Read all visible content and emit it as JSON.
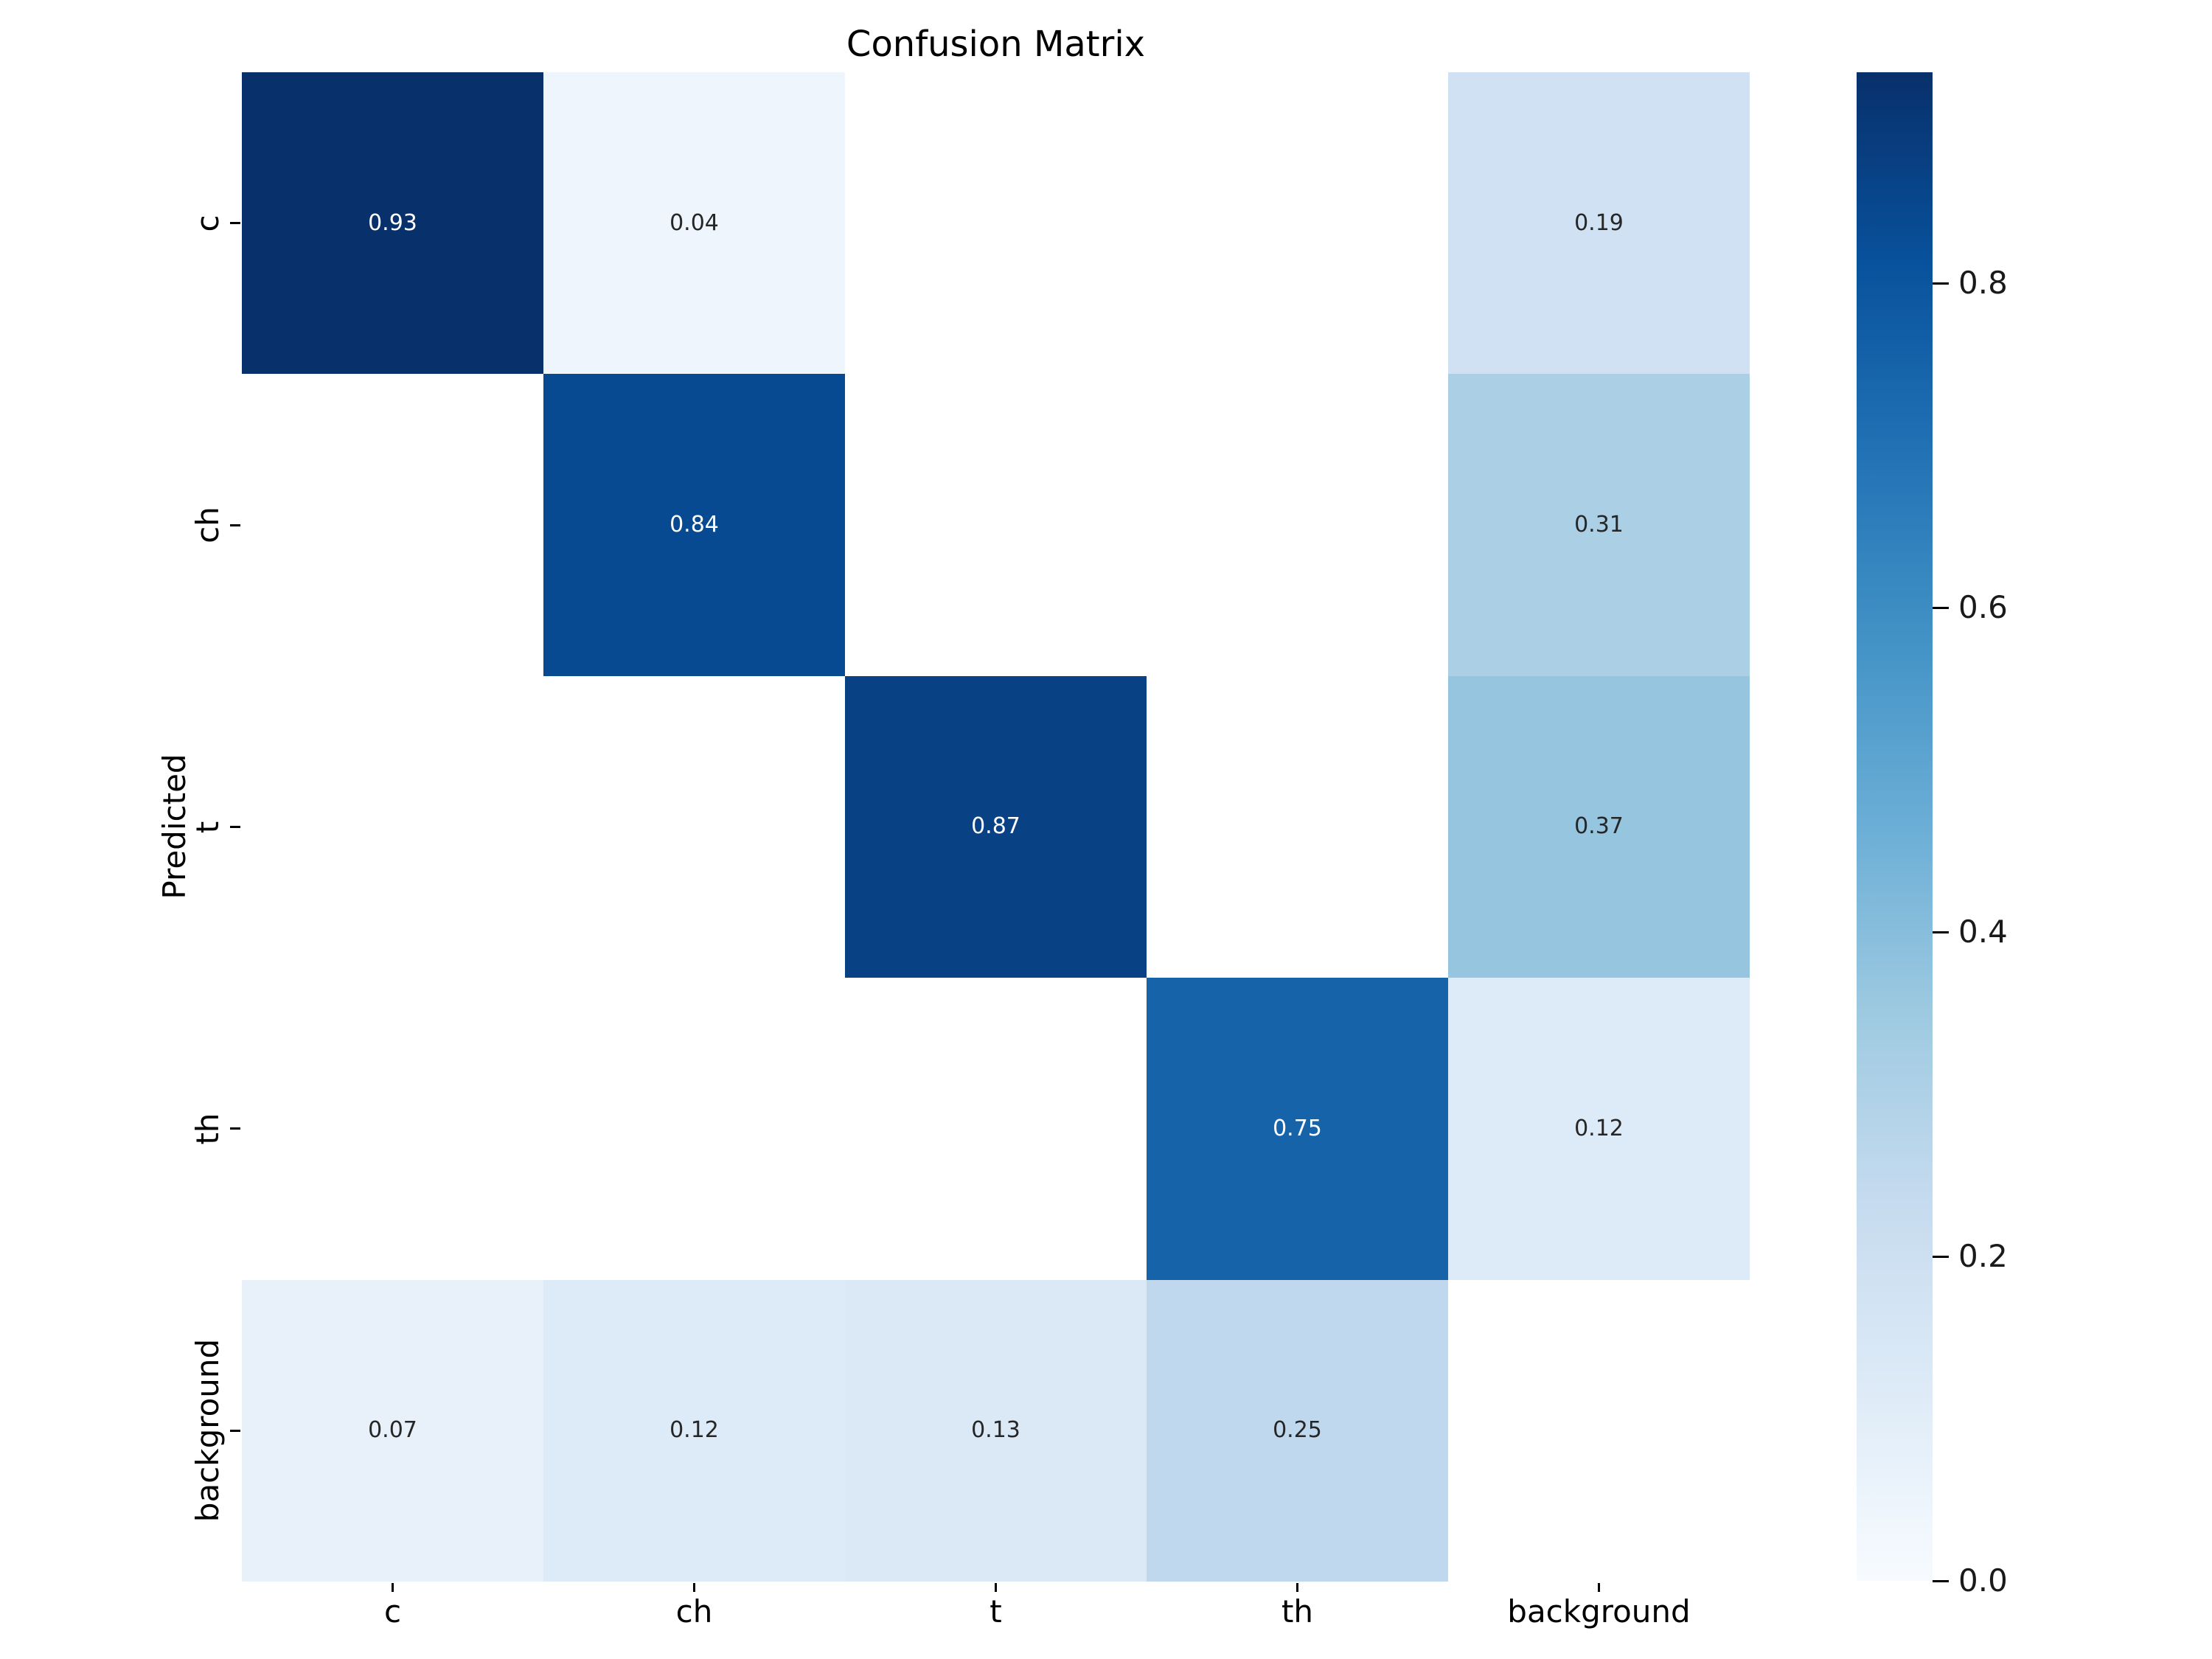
{
  "figure": {
    "background_color": "#ffffff"
  },
  "chart_data": {
    "type": "heatmap",
    "title": "Confusion Matrix",
    "xlabel": "",
    "ylabel": "Predicted",
    "x_categories": [
      "c",
      "ch",
      "t",
      "th",
      "background"
    ],
    "y_categories": [
      "c",
      "ch",
      "t",
      "th",
      "background"
    ],
    "matrix": [
      [
        0.93,
        0.04,
        null,
        null,
        0.19
      ],
      [
        null,
        0.84,
        null,
        null,
        0.31
      ],
      [
        null,
        null,
        0.87,
        null,
        0.37
      ],
      [
        null,
        null,
        null,
        0.75,
        0.12
      ],
      [
        0.07,
        0.12,
        0.13,
        0.25,
        null
      ]
    ],
    "annotation_decimals": 2,
    "masked_cell_color": "#ffffff",
    "annotation_text_dark": "#262626",
    "annotation_text_light": "#ffffff",
    "colormap": {
      "name": "Blues",
      "anchors": [
        "#f7fbff",
        "#deebf7",
        "#c6dbef",
        "#9ecae1",
        "#6baed6",
        "#4292c6",
        "#2171b5",
        "#08519c",
        "#08306b"
      ]
    },
    "vmin": 0.0,
    "vmax": 0.93,
    "grid": false,
    "legend_position": "right-colorbar",
    "colorbar": {
      "ticks": [
        0.8,
        0.6,
        0.4,
        0.2,
        0.0
      ],
      "tick_labels": [
        "0.8",
        "0.6",
        "0.4",
        "0.2",
        "0.0"
      ]
    }
  }
}
